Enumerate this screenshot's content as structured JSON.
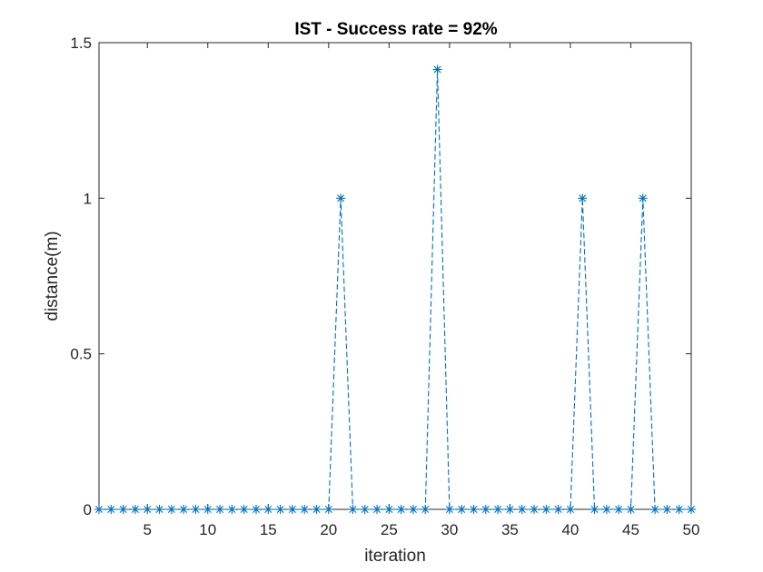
{
  "chart_data": {
    "type": "line",
    "title": "IST - Success rate = 92%",
    "xlabel": "iteration",
    "ylabel": "distance(m)",
    "xlim": [
      1,
      50
    ],
    "ylim": [
      0,
      1.5
    ],
    "xticks": [
      5,
      10,
      15,
      20,
      25,
      30,
      35,
      40,
      45,
      50
    ],
    "yticks": [
      0,
      0.5,
      1,
      1.5
    ],
    "xtick_labels": [
      "5",
      "10",
      "15",
      "20",
      "25",
      "30",
      "35",
      "40",
      "45",
      "50"
    ],
    "ytick_labels": [
      "0",
      "0.5",
      "1",
      "1.5"
    ],
    "grid": false,
    "series": [
      {
        "line_style": "dashed",
        "marker": "asterisk",
        "color": "#0072BD",
        "x": [
          1,
          2,
          3,
          4,
          5,
          6,
          7,
          8,
          9,
          10,
          11,
          12,
          13,
          14,
          15,
          16,
          17,
          18,
          19,
          20,
          21,
          22,
          23,
          24,
          25,
          26,
          27,
          28,
          29,
          30,
          31,
          32,
          33,
          34,
          35,
          36,
          37,
          38,
          39,
          40,
          41,
          42,
          43,
          44,
          45,
          46,
          47,
          48,
          49,
          50
        ],
        "values": [
          0,
          0,
          0,
          0,
          0,
          0,
          0,
          0,
          0,
          0,
          0,
          0,
          0,
          0,
          0,
          0,
          0,
          0,
          0,
          0,
          1,
          0,
          0,
          0,
          0,
          0,
          0,
          0,
          1.414,
          0,
          0,
          0,
          0,
          0,
          0,
          0,
          0,
          0,
          0,
          0,
          1,
          0,
          0,
          0,
          0,
          1,
          0,
          0,
          0,
          0
        ]
      }
    ]
  }
}
